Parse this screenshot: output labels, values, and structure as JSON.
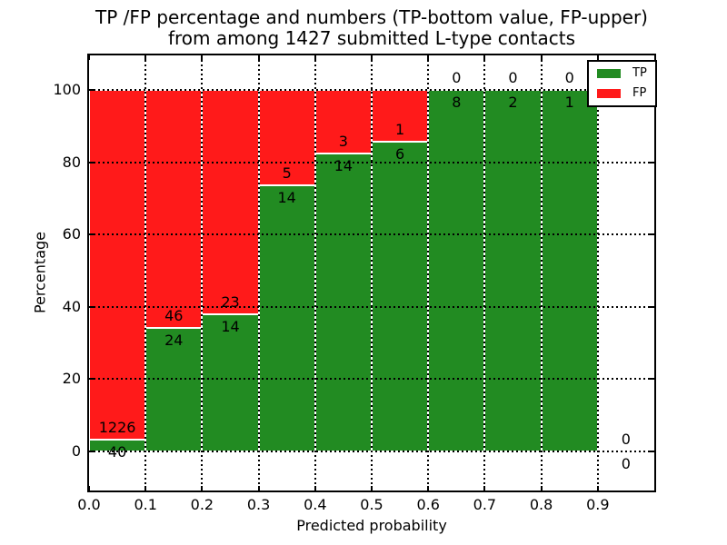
{
  "figure": {
    "title_lines": [
      "TP /FP percentage and numbers (TP-bottom value, FP-upper)",
      "from among 1427 submitted L-type contacts"
    ],
    "xlabel": "Predicted probability",
    "ylabel": "Percentage"
  },
  "colors": {
    "tp_green": "#228b22",
    "fp_red": "#ff1a1a",
    "grid": "#000000",
    "background": "#ffffff"
  },
  "chart_data": {
    "type": "bar",
    "subtype": "stacked-percentage-histogram",
    "title": "TP /FP percentage and numbers (TP-bottom value, FP-upper) from among 1427 submitted L-type contacts",
    "xlabel": "Predicted probability",
    "ylabel": "Percentage",
    "total_contacts": 1427,
    "xlim": [
      0.0,
      1.0
    ],
    "ylim": [
      -10.8,
      109.6
    ],
    "bin_width": 0.1,
    "bin_starts": [
      0.0,
      0.1,
      0.2,
      0.3,
      0.4,
      0.5,
      0.6,
      0.7,
      0.8,
      0.9
    ],
    "categories": [
      "0.0-0.1",
      "0.1-0.2",
      "0.2-0.3",
      "0.3-0.4",
      "0.4-0.5",
      "0.5-0.6",
      "0.6-0.7",
      "0.7-0.8",
      "0.8-0.9",
      "0.9-1.0"
    ],
    "series": [
      {
        "name": "TP",
        "color": "#228b22",
        "counts": [
          40,
          24,
          14,
          14,
          14,
          6,
          8,
          2,
          1,
          0
        ]
      },
      {
        "name": "FP",
        "color": "#ff1a1a",
        "counts": [
          1226,
          46,
          23,
          5,
          3,
          1,
          0,
          0,
          0,
          0
        ]
      }
    ],
    "stacking": "percent",
    "grid": true,
    "grid_style": "dotted",
    "legend_position": "upper right",
    "x_ticks": {
      "values": [
        0.0,
        0.1,
        0.2,
        0.3,
        0.4,
        0.5,
        0.6,
        0.7,
        0.8,
        0.9
      ],
      "labels": [
        "0.0",
        "0.1",
        "0.2",
        "0.3",
        "0.4",
        "0.5",
        "0.6",
        "0.7",
        "0.8",
        "0.9"
      ]
    },
    "y_ticks": {
      "values": [
        0,
        20,
        40,
        60,
        80,
        100
      ],
      "labels": [
        "0",
        "20",
        "40",
        "60",
        "80",
        "100"
      ]
    }
  }
}
